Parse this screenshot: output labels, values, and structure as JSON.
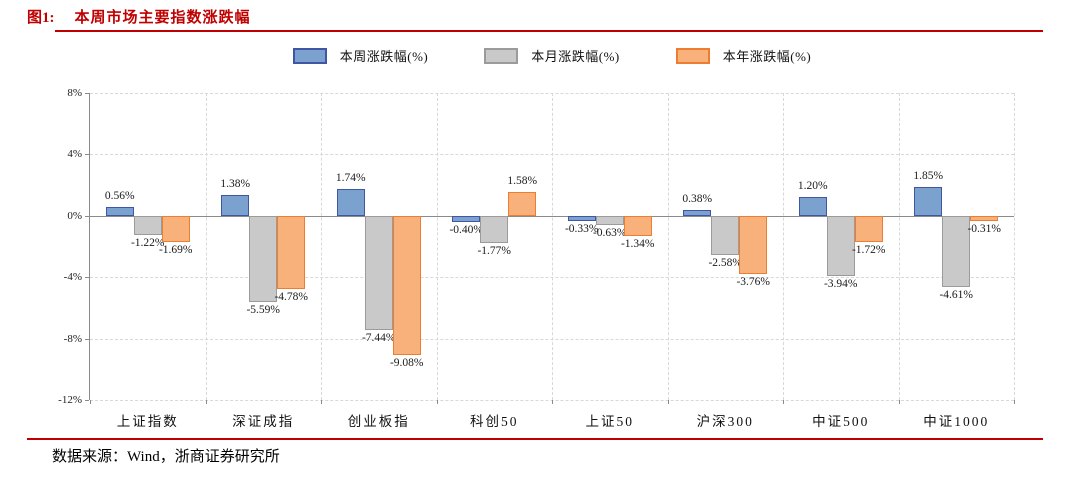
{
  "figure": {
    "label": "图1:",
    "title": "本周市场主要指数涨跌幅",
    "source": "数据来源：Wind，浙商证券研究所"
  },
  "colors": {
    "accent_red": "#c00000",
    "axis_gray": "#8a8a8a",
    "grid_gray": "#d8d8d8"
  },
  "chart_data": {
    "type": "bar",
    "title": "本周市场主要指数涨跌幅",
    "categories": [
      "上证指数",
      "深证成指",
      "创业板指",
      "科创50",
      "上证50",
      "沪深300",
      "中证500",
      "中证1000"
    ],
    "series": [
      {
        "name": "本周涨跌幅(%)",
        "values": [
          0.56,
          1.38,
          1.74,
          -0.4,
          -0.33,
          0.38,
          1.2,
          1.85
        ],
        "labels": [
          "0.56%",
          "1.38%",
          "1.74%",
          "-0.40%",
          "-0.33%",
          "0.38%",
          "1.20%",
          "1.85%"
        ],
        "fill": "#7ba2cf",
        "stroke": "#4056a5"
      },
      {
        "name": "本月涨跌幅(%)",
        "values": [
          -1.22,
          -5.59,
          -7.44,
          -1.77,
          -0.63,
          -2.58,
          -3.94,
          -4.61
        ],
        "labels": [
          "-1.22%",
          "-5.59%",
          "-7.44%",
          "-1.77%",
          "-0.63%",
          "-2.58%",
          "-3.94%",
          "-4.61%"
        ],
        "fill": "#c9c9c9",
        "stroke": "#9b9b9b"
      },
      {
        "name": "本年涨跌幅(%)",
        "values": [
          -1.69,
          -4.78,
          -9.08,
          1.58,
          -1.34,
          -3.76,
          -1.72,
          -0.31
        ],
        "labels": [
          "-1.69%",
          "-4.78%",
          "-9.08%",
          "1.58%",
          "-1.34%",
          "-3.76%",
          "-1.72%",
          "-0.31%"
        ],
        "fill": "#f9b17c",
        "stroke": "#ed7d31"
      }
    ],
    "ylim": [
      -12,
      8
    ],
    "yticks": [
      8,
      4,
      0,
      -4,
      -8,
      -12
    ],
    "ytick_labels": [
      "8%",
      "4%",
      "0%",
      "-4%",
      "-8%",
      "-12%"
    ],
    "xlabel": "",
    "ylabel": "",
    "grid": true,
    "legend_position": "top-center"
  }
}
